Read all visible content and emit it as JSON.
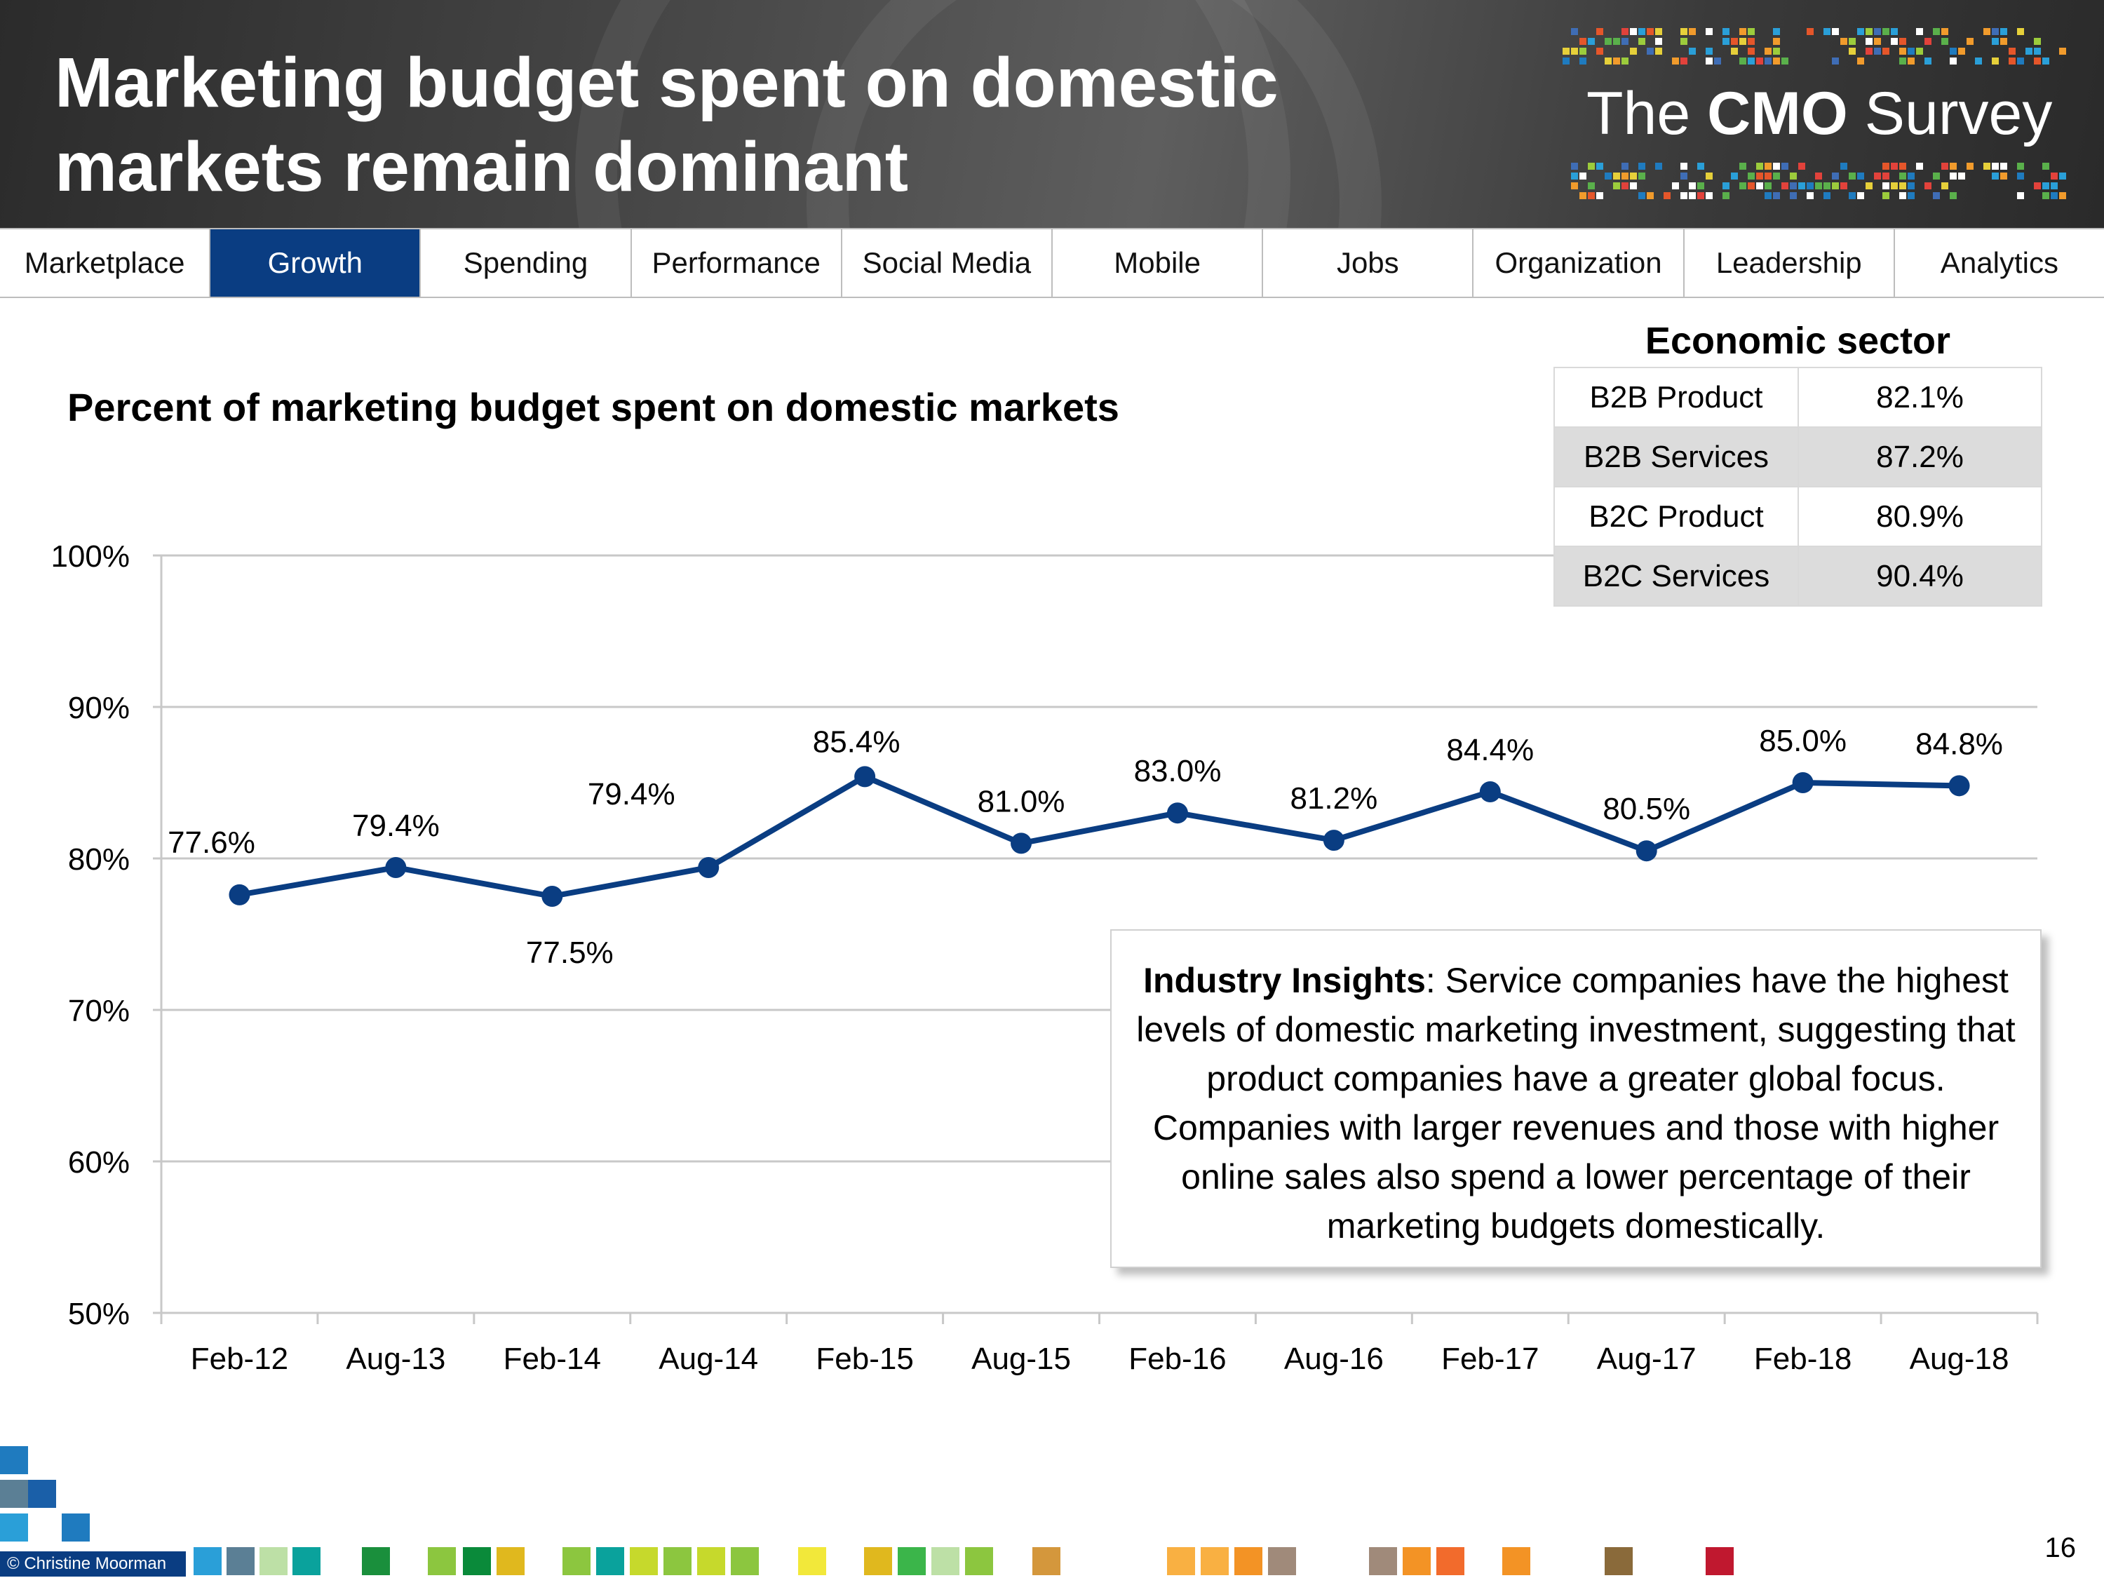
{
  "header": {
    "title_line1": "Marketing budget spent on domestic",
    "title_line2": "markets remain dominant",
    "logo_prefix": "The",
    "logo_bold": "CMO",
    "logo_suffix": "Survey"
  },
  "nav": {
    "tabs": [
      {
        "label": "Marketplace",
        "active": false
      },
      {
        "label": "Growth",
        "active": true
      },
      {
        "label": "Spending",
        "active": false
      },
      {
        "label": "Performance",
        "active": false
      },
      {
        "label": "Social Media",
        "active": false
      },
      {
        "label": "Mobile",
        "active": false
      },
      {
        "label": "Jobs",
        "active": false
      },
      {
        "label": "Organization",
        "active": false
      },
      {
        "label": "Leadership",
        "active": false
      },
      {
        "label": "Analytics",
        "active": false
      }
    ],
    "active_color": "#0a3d82"
  },
  "sector": {
    "heading": "Economic sector",
    "rows": [
      {
        "name": "B2B Product",
        "value": "82.1%"
      },
      {
        "name": "B2B Services",
        "value": "87.2%"
      },
      {
        "name": "B2C Product",
        "value": "80.9%"
      },
      {
        "name": "B2C Services",
        "value": "90.4%"
      }
    ]
  },
  "insight": {
    "bold": "Industry Insights",
    "text": ": Service companies have the highest levels of domestic marketing investment, suggesting that product companies have a greater global focus. Companies with larger revenues and those with higher online sales also spend a lower percentage of their marketing budgets domestically."
  },
  "footer": {
    "copyright": "© Christine Moorman",
    "page_number": "16"
  },
  "chart_data": {
    "type": "line",
    "title": "Percent of marketing budget spent on domestic markets",
    "categories": [
      "Feb-12",
      "Aug-13",
      "Feb-14",
      "Aug-14",
      "Feb-15",
      "Aug-15",
      "Feb-16",
      "Aug-16",
      "Feb-17",
      "Aug-17",
      "Feb-18",
      "Aug-18"
    ],
    "series": [
      {
        "values": [
          77.6,
          79.4,
          77.5,
          79.4,
          85.4,
          81.0,
          83.0,
          81.2,
          84.4,
          80.5,
          85.0,
          84.8
        ],
        "labels": [
          "77.6%",
          "79.4%",
          "77.5%",
          "79.4%",
          "85.4%",
          "81.0%",
          "83.0%",
          "81.2%",
          "84.4%",
          "80.5%",
          "85.0%",
          "84.8%"
        ],
        "color": "#0a3d82"
      }
    ],
    "yticks": [
      "50%",
      "60%",
      "70%",
      "80%",
      "90%",
      "100%"
    ],
    "ylim": [
      50,
      100
    ],
    "grid": true,
    "legend": "none"
  }
}
